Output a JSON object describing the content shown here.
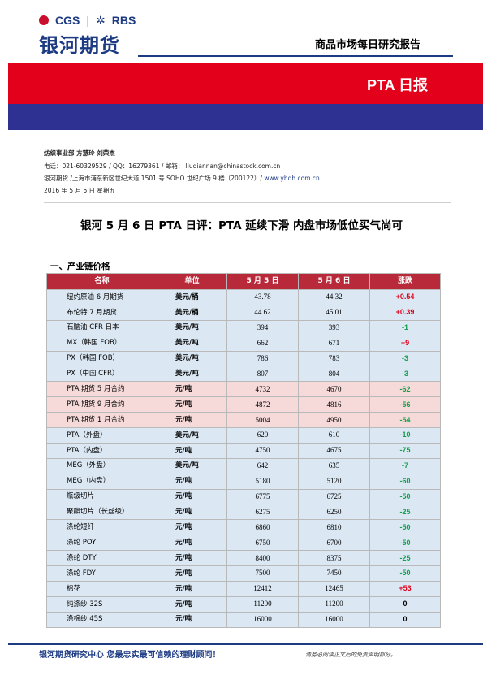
{
  "header": {
    "logo_cgs": "CGS",
    "logo_rbs": "RBS",
    "logo_cn": "银河期货",
    "report_type": "商品市场每日研究报告",
    "title": "PTA 日报"
  },
  "meta": {
    "dept_line": "纺织事业部    方慧玲    刘荣杰",
    "contact_line": "电话：021-60329529 / QQ：16279361 / 邮箱：      liuqiannan@chinastock.com.cn",
    "address_line": "银河期货 /上海市浦东新区世纪大道 1501 号 SOHO 世纪广场 9 楼（200122）/ ",
    "website": "www.yhqh.com.cn",
    "date_line": "2016 年 5 月 6 日   星期五"
  },
  "headline": "银河 5 月 6 日 PTA 日评：PTA 延续下滑    内盘市场低位买气尚可",
  "section_title": "一、产业链价格",
  "table": {
    "headers": [
      "名称",
      "单位",
      "5 月 5 日",
      "5 月 6 日",
      "涨跌"
    ],
    "rows": [
      {
        "name": "纽约原油 6 月期货",
        "unit": "美元/桶",
        "d1": "43.78",
        "d2": "44.32",
        "chg": "+0.54",
        "dir": "up",
        "bg": "blue"
      },
      {
        "name": "布伦特 7 月期货",
        "unit": "美元/桶",
        "d1": "44.62",
        "d2": "45.01",
        "chg": "+0.39",
        "dir": "up",
        "bg": "blue"
      },
      {
        "name": "石脑油 CFR 日本",
        "unit": "美元/吨",
        "d1": "394",
        "d2": "393",
        "chg": "-1",
        "dir": "down",
        "bg": "blue"
      },
      {
        "name": "MX（韩国 FOB）",
        "unit": "美元/吨",
        "d1": "662",
        "d2": "671",
        "chg": "+9",
        "dir": "up",
        "bg": "blue"
      },
      {
        "name": "PX（韩国 FOB）",
        "unit": "美元/吨",
        "d1": "786",
        "d2": "783",
        "chg": "-3",
        "dir": "down",
        "bg": "blue"
      },
      {
        "name": "PX（中国 CFR）",
        "unit": "美元/吨",
        "d1": "807",
        "d2": "804",
        "chg": "-3",
        "dir": "down",
        "bg": "blue"
      },
      {
        "name": "PTA 期货 5 月合约",
        "unit": "元/吨",
        "d1": "4732",
        "d2": "4670",
        "chg": "-62",
        "dir": "down",
        "bg": "pink"
      },
      {
        "name": "PTA 期货 9 月合约",
        "unit": "元/吨",
        "d1": "4872",
        "d2": "4816",
        "chg": "-56",
        "dir": "down",
        "bg": "pink"
      },
      {
        "name": "PTA 期货 1 月合约",
        "unit": "元/吨",
        "d1": "5004",
        "d2": "4950",
        "chg": "-54",
        "dir": "down",
        "bg": "pink"
      },
      {
        "name": "PTA（外盘）",
        "unit": "美元/吨",
        "d1": "620",
        "d2": "610",
        "chg": "-10",
        "dir": "down",
        "bg": "blue"
      },
      {
        "name": "PTA（内盘）",
        "unit": "元/吨",
        "d1": "4750",
        "d2": "4675",
        "chg": "-75",
        "dir": "down",
        "bg": "blue"
      },
      {
        "name": "MEG（外盘）",
        "unit": "美元/吨",
        "d1": "642",
        "d2": "635",
        "chg": "-7",
        "dir": "down",
        "bg": "blue"
      },
      {
        "name": "MEG（内盘）",
        "unit": "元/吨",
        "d1": "5180",
        "d2": "5120",
        "chg": "-60",
        "dir": "down",
        "bg": "blue"
      },
      {
        "name": "瓶级切片",
        "unit": "元/吨",
        "d1": "6775",
        "d2": "6725",
        "chg": "-50",
        "dir": "down",
        "bg": "blue"
      },
      {
        "name": "聚酯切片（长丝级）",
        "unit": "元/吨",
        "d1": "6275",
        "d2": "6250",
        "chg": "-25",
        "dir": "down",
        "bg": "blue"
      },
      {
        "name": "涤纶短纤",
        "unit": "元/吨",
        "d1": "6860",
        "d2": "6810",
        "chg": "-50",
        "dir": "down",
        "bg": "blue"
      },
      {
        "name": "涤纶 POY",
        "unit": "元/吨",
        "d1": "6750",
        "d2": "6700",
        "chg": "-50",
        "dir": "down",
        "bg": "blue"
      },
      {
        "name": "涤纶 DTY",
        "unit": "元/吨",
        "d1": "8400",
        "d2": "8375",
        "chg": "-25",
        "dir": "down",
        "bg": "blue"
      },
      {
        "name": "涤纶 FDY",
        "unit": "元/吨",
        "d1": "7500",
        "d2": "7450",
        "chg": "-50",
        "dir": "down",
        "bg": "blue"
      },
      {
        "name": "棉花",
        "unit": "元/吨",
        "d1": "12412",
        "d2": "12465",
        "chg": "+53",
        "dir": "up",
        "bg": "blue"
      },
      {
        "name": "纯涤纱 32S",
        "unit": "元/吨",
        "d1": "11200",
        "d2": "11200",
        "chg": "0",
        "dir": "flat",
        "bg": "blue"
      },
      {
        "name": "涤棉纱 45S",
        "unit": "元/吨",
        "d1": "16000",
        "d2": "16000",
        "chg": "0",
        "dir": "flat",
        "bg": "blue"
      }
    ]
  },
  "footer": {
    "left": "银河期货研究中心  您最忠实最可信赖的理财顾问！",
    "right": "请务必阅读正文后的免责声明部分。"
  },
  "colors": {
    "brand_navy": "#1d3b83",
    "band_red": "#e2001a",
    "band_navy": "#2e3192",
    "header_row": "#b8293a",
    "up": "#e2001a",
    "down": "#12a04a"
  }
}
